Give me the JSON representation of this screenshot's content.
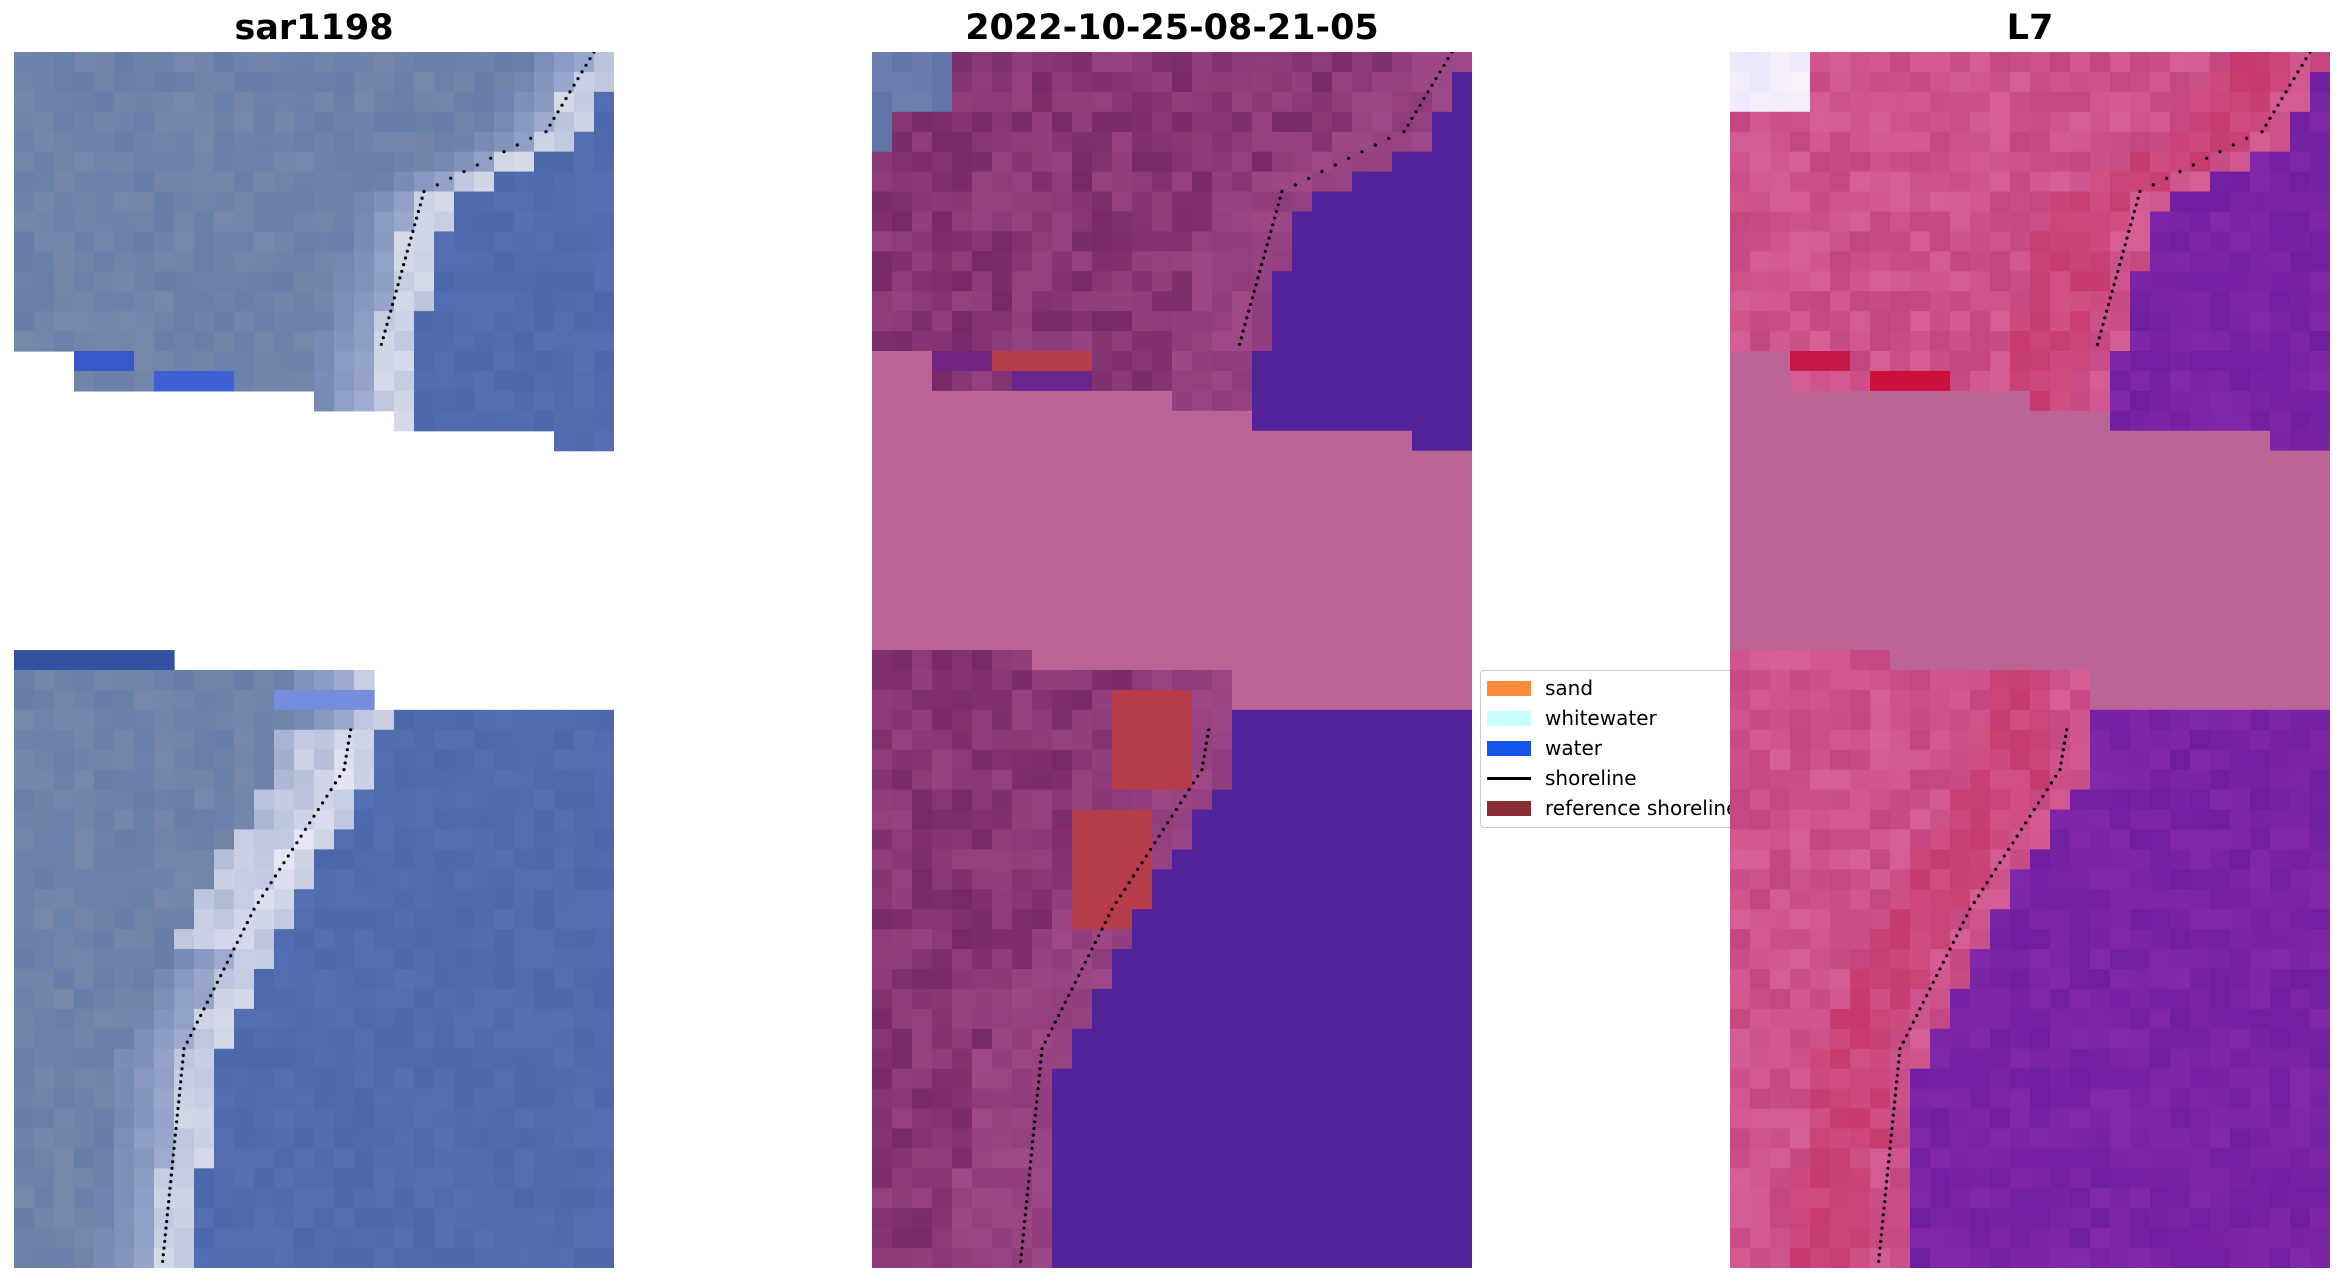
{
  "panels": [
    {
      "title": "sar1198",
      "style": "rgb"
    },
    {
      "title": "2022-10-25-08-21-05",
      "style": "classified"
    },
    {
      "title": "L7",
      "style": "falsecolor"
    }
  ],
  "legend": {
    "items": [
      {
        "label": "sand",
        "kind": "patch",
        "color": "#ff8c3a"
      },
      {
        "label": "whitewater",
        "kind": "patch",
        "color": "#c8fcff"
      },
      {
        "label": "water",
        "kind": "patch",
        "color": "#1255e8"
      },
      {
        "label": "shoreline",
        "kind": "line",
        "color": "#000000"
      },
      {
        "label": "reference shoreline",
        "kind": "patch",
        "color": "#8a2f33"
      }
    ]
  },
  "colors": {
    "nodata_band": "#bc6495",
    "classified_water": "#52229a",
    "sand_marked": "#b83d4a"
  }
}
